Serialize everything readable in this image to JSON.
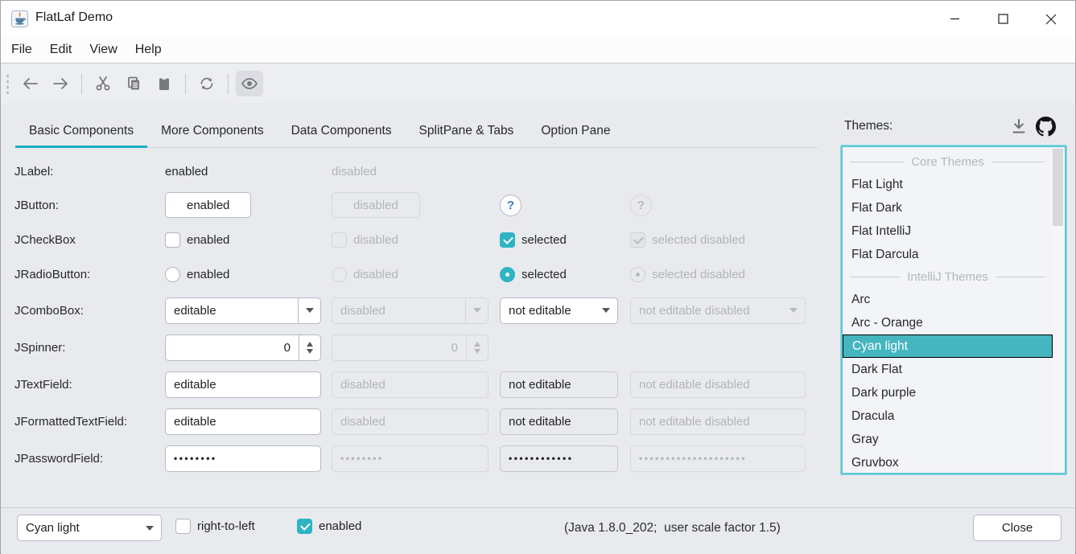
{
  "window": {
    "title": "FlatLaf Demo",
    "controls": [
      "minimize",
      "maximize",
      "close"
    ]
  },
  "menubar": {
    "items": [
      "File",
      "Edit",
      "View",
      "Help"
    ]
  },
  "toolbar": {
    "icons": [
      "back-icon",
      "forward-icon",
      "cut-icon",
      "copy-icon",
      "paste-icon",
      "refresh-icon",
      "show-eye-icon"
    ],
    "toggled": "show-eye-icon"
  },
  "tabs": [
    {
      "label": "Basic Components",
      "selected": true
    },
    {
      "label": "More Components",
      "selected": false
    },
    {
      "label": "Data Components",
      "selected": false
    },
    {
      "label": "SplitPane & Tabs",
      "selected": false
    },
    {
      "label": "Option Pane",
      "selected": false
    }
  ],
  "components_panel": {
    "rows": [
      {
        "label": "JLabel:",
        "cells": [
          {
            "type": "label",
            "text": "enabled"
          },
          {
            "type": "label",
            "text": "disabled",
            "disabled": true
          }
        ]
      },
      {
        "label": "JButton:",
        "cells": [
          {
            "type": "button",
            "text": "enabled"
          },
          {
            "type": "button",
            "text": "disabled",
            "disabled": true
          },
          {
            "type": "help",
            "text": "?"
          },
          {
            "type": "help",
            "text": "?",
            "disabled": true
          }
        ]
      },
      {
        "label": "JCheckBox",
        "cells": [
          {
            "type": "checkbox",
            "text": "enabled",
            "checked": false
          },
          {
            "type": "checkbox",
            "text": "disabled",
            "checked": false,
            "disabled": true
          },
          {
            "type": "checkbox",
            "text": "selected",
            "checked": true
          },
          {
            "type": "checkbox",
            "text": "selected disabled",
            "checked": true,
            "disabled": true
          }
        ]
      },
      {
        "label": "JRadioButton:",
        "cells": [
          {
            "type": "radio",
            "text": "enabled",
            "checked": false
          },
          {
            "type": "radio",
            "text": "disabled",
            "checked": false,
            "disabled": true
          },
          {
            "type": "radio",
            "text": "selected",
            "checked": true
          },
          {
            "type": "radio",
            "text": "selected disabled",
            "checked": true,
            "disabled": true
          }
        ]
      },
      {
        "label": "JComboBox:",
        "cells": [
          {
            "type": "combo",
            "text": "editable",
            "editable": true
          },
          {
            "type": "combo",
            "text": "disabled",
            "editable": true,
            "disabled": true
          },
          {
            "type": "combo",
            "text": "not editable"
          },
          {
            "type": "combo",
            "text": "not editable disabled",
            "disabled": true
          }
        ]
      },
      {
        "label": "JSpinner:",
        "cells": [
          {
            "type": "spinner",
            "text": "0"
          },
          {
            "type": "spinner",
            "text": "0",
            "disabled": true
          }
        ]
      },
      {
        "label": "JTextField:",
        "cells": [
          {
            "type": "text",
            "text": "editable"
          },
          {
            "type": "text",
            "text": "disabled",
            "disabled": true
          },
          {
            "type": "text",
            "text": "not editable",
            "readonly": true
          },
          {
            "type": "text",
            "text": "not editable disabled",
            "readonly": true,
            "disabled": true
          }
        ]
      },
      {
        "label": "JFormattedTextField:",
        "cells": [
          {
            "type": "text",
            "text": "editable"
          },
          {
            "type": "text",
            "text": "disabled",
            "disabled": true
          },
          {
            "type": "text",
            "text": "not editable",
            "readonly": true
          },
          {
            "type": "text",
            "text": "not editable disabled",
            "readonly": true,
            "disabled": true
          }
        ]
      },
      {
        "label": "JPasswordField:",
        "cells": [
          {
            "type": "password",
            "dots": 8
          },
          {
            "type": "password",
            "dots": 8,
            "disabled": true
          },
          {
            "type": "password",
            "dots": 12,
            "readonly": true
          },
          {
            "type": "password",
            "dots": 20,
            "readonly": true,
            "disabled": true
          }
        ]
      }
    ]
  },
  "themes": {
    "label": "Themes:",
    "icons": [
      "download-icon",
      "github-icon"
    ],
    "list": [
      {
        "type": "header",
        "text": "Core Themes"
      },
      {
        "type": "item",
        "text": "Flat Light"
      },
      {
        "type": "item",
        "text": "Flat Dark"
      },
      {
        "type": "item",
        "text": "Flat IntelliJ"
      },
      {
        "type": "item",
        "text": "Flat Darcula"
      },
      {
        "type": "header",
        "text": "IntelliJ Themes"
      },
      {
        "type": "item",
        "text": "Arc"
      },
      {
        "type": "item",
        "text": "Arc - Orange"
      },
      {
        "type": "item",
        "text": "Cyan light",
        "selected": true
      },
      {
        "type": "item",
        "text": "Dark Flat"
      },
      {
        "type": "item",
        "text": "Dark purple"
      },
      {
        "type": "item",
        "text": "Dracula"
      },
      {
        "type": "item",
        "text": "Gray"
      },
      {
        "type": "item",
        "text": "Gruvbox"
      }
    ]
  },
  "bottombar": {
    "theme_combo_value": "Cyan light",
    "checkboxes": [
      {
        "label": "right-to-left",
        "checked": false
      },
      {
        "label": "enabled",
        "checked": true
      }
    ],
    "status": "(Java 1.8.0_202;  user scale factor 1.5)",
    "close_label": "Close"
  },
  "colors": {
    "accent": "#1bb0c6",
    "selection": "#45b5bf",
    "checkbox_checked": "#2eb4c3",
    "focus_border": "#5cc8d6",
    "background": "#e9eaee",
    "help_question": "#3f7bc3"
  }
}
